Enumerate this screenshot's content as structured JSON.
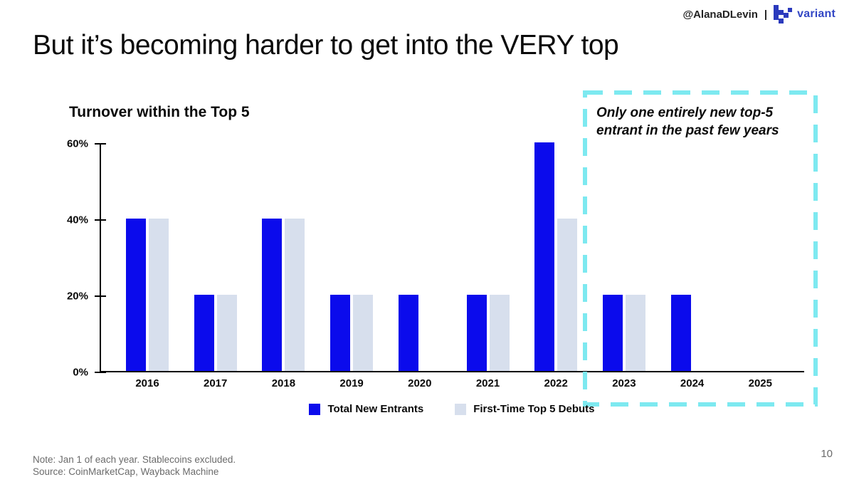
{
  "header": {
    "handle": "@AlanaDLevin",
    "separator": "|",
    "brand": "variant",
    "brand_color": "#3347c5",
    "logo_color": "#2b3abd"
  },
  "title": "But it’s becoming harder to get into the VERY top",
  "chart": {
    "title": "Turnover within the Top 5",
    "y_ticks": [
      {
        "label": "60%",
        "value": 60
      },
      {
        "label": "40%",
        "value": 40
      },
      {
        "label": "20%",
        "value": 20
      },
      {
        "label": "0%",
        "value": 0
      }
    ]
  },
  "chart_data": {
    "type": "bar",
    "title": "Turnover within the Top 5",
    "categories": [
      "2016",
      "2017",
      "2018",
      "2019",
      "2020",
      "2021",
      "2022",
      "2023",
      "2024",
      "2025"
    ],
    "series": [
      {
        "name": "Total New Entrants",
        "color": "#0b0bec",
        "values": [
          40,
          20,
          40,
          20,
          20,
          20,
          60,
          20,
          20,
          0
        ]
      },
      {
        "name": "First-Time Top 5 Debuts",
        "color": "#d7dfed",
        "values": [
          40,
          20,
          40,
          20,
          0,
          20,
          40,
          20,
          0,
          0
        ]
      }
    ],
    "xlabel": "",
    "ylabel": "",
    "ylim": [
      0,
      60
    ],
    "y_tick_values": [
      0,
      20,
      40,
      60
    ],
    "grid": false,
    "legend_position": "bottom-center"
  },
  "annotation": {
    "text": "Only one entirely new top-5 entrant in the past few years",
    "box_color": "#7de9f0",
    "box_years": [
      "2023",
      "2024",
      "2025"
    ]
  },
  "footer": {
    "note": "Note: Jan 1 of each year. Stablecoins excluded.",
    "source": "Source: CoinMarketCap, Wayback Machine",
    "page": "10"
  }
}
